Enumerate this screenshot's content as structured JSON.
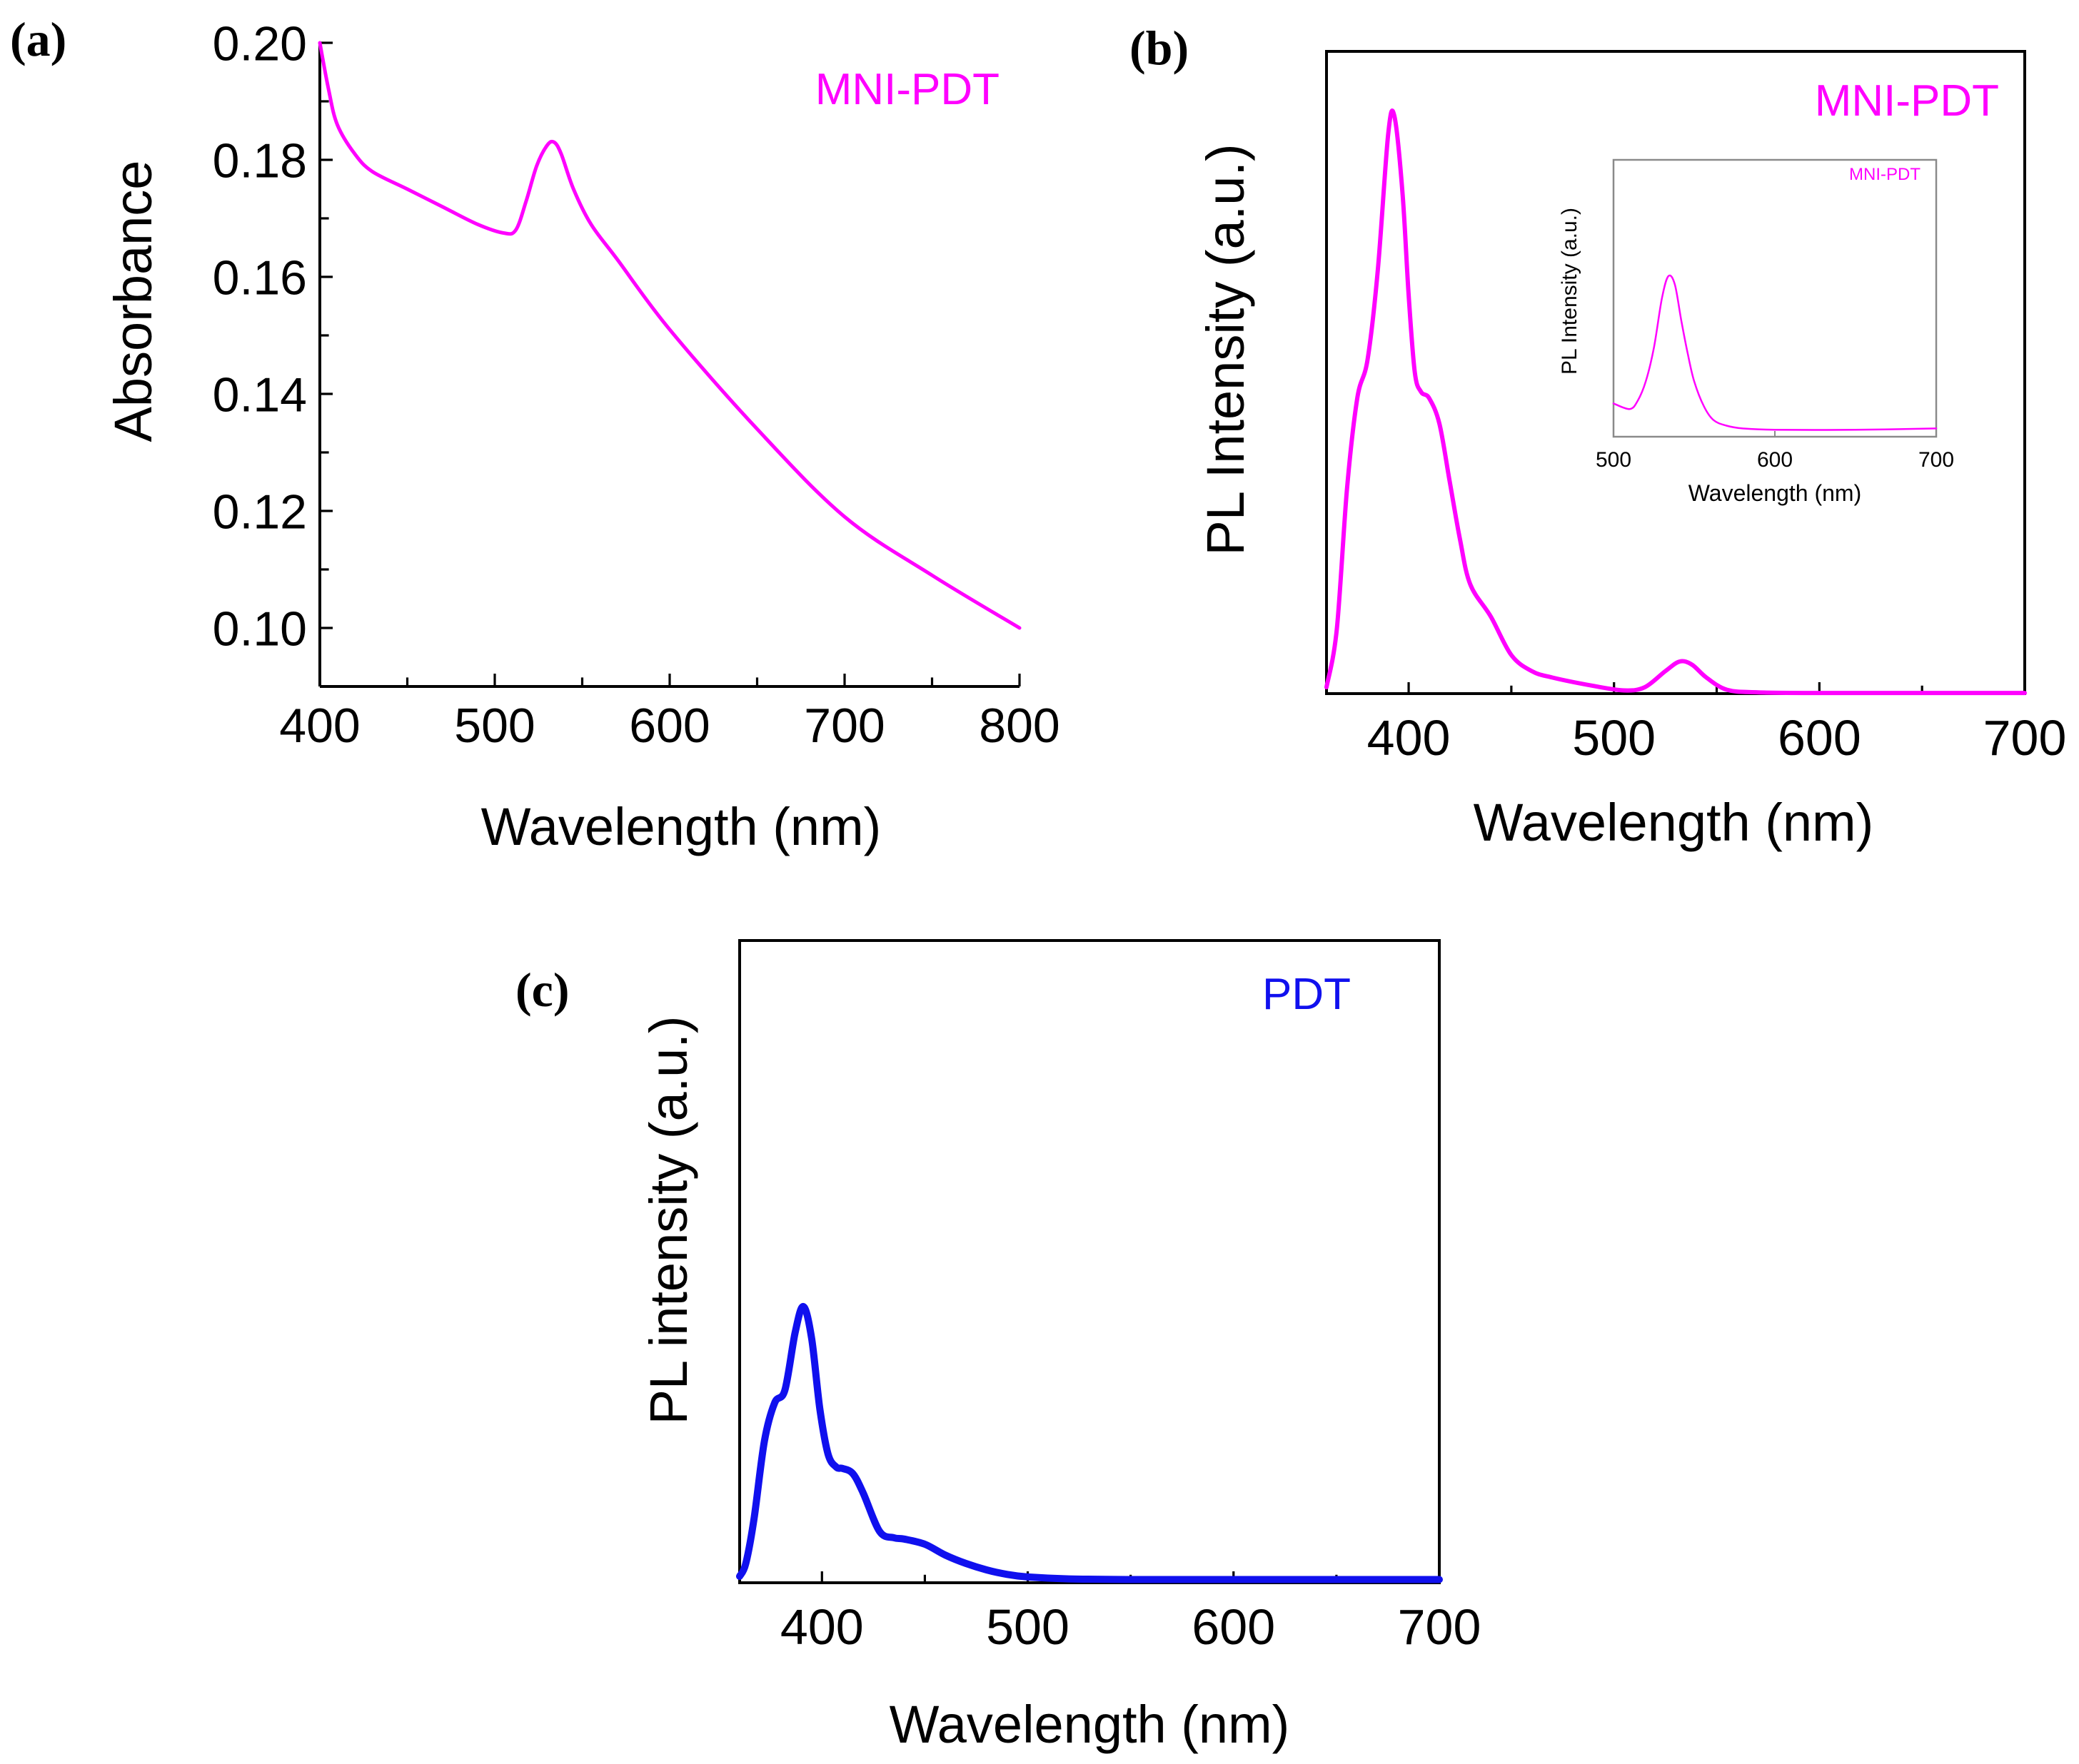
{
  "figure": {
    "background": "#ffffff",
    "axis_color": "#000000",
    "inset_frame_color": "#8a8a8a"
  },
  "chart_data": [
    {
      "id": "a",
      "panel_label": "(a)",
      "type": "line",
      "legend_label": "MNI-PDT",
      "legend_position": "top-right",
      "color": "#ff00ff",
      "xlabel": "Wavelength (nm)",
      "ylabel": "Absorbance",
      "xlim": [
        400,
        800
      ],
      "ylim": [
        0.09,
        0.2
      ],
      "xticks": [
        400,
        500,
        600,
        700,
        800
      ],
      "xtick_labels": [
        "400",
        "500",
        "600",
        "700",
        "800"
      ],
      "yticks": [
        0.1,
        0.12,
        0.14,
        0.16,
        0.18,
        0.2
      ],
      "ytick_labels": [
        "0.10",
        "0.12",
        "0.14",
        "0.16",
        "0.18",
        "0.20"
      ],
      "x": [
        400,
        405,
        410,
        420,
        430,
        450,
        470,
        490,
        505,
        512,
        518,
        524,
        530,
        534,
        538,
        545,
        555,
        570,
        600,
        650,
        700,
        750,
        800
      ],
      "y": [
        0.2,
        0.192,
        0.186,
        0.181,
        0.178,
        0.175,
        0.172,
        0.169,
        0.1675,
        0.168,
        0.173,
        0.179,
        0.1825,
        0.183,
        0.181,
        0.175,
        0.169,
        0.163,
        0.151,
        0.134,
        0.119,
        0.109,
        0.1
      ],
      "grid": false
    },
    {
      "id": "b",
      "panel_label": "(b)",
      "type": "line",
      "legend_label": "MNI-PDT",
      "legend_position": "top-right",
      "color": "#ff00ff",
      "xlabel": "Wavelength (nm)",
      "ylabel": "PL Intensity (a.u.)",
      "xlim": [
        360,
        700
      ],
      "ylim": [
        0,
        1
      ],
      "xticks": [
        400,
        500,
        600,
        700
      ],
      "xtick_labels": [
        "400",
        "500",
        "600",
        "700"
      ],
      "minor_xticks": [
        450,
        550,
        650
      ],
      "x": [
        360,
        365,
        370,
        375,
        380,
        385,
        390,
        393,
        397,
        400,
        403,
        406,
        410,
        415,
        420,
        425,
        430,
        440,
        450,
        460,
        470,
        490,
        505,
        515,
        525,
        532,
        538,
        545,
        555,
        570,
        600,
        650,
        700
      ],
      "y": [
        0.01,
        0.1,
        0.32,
        0.46,
        0.52,
        0.66,
        0.87,
        0.9,
        0.78,
        0.62,
        0.5,
        0.47,
        0.46,
        0.42,
        0.33,
        0.24,
        0.17,
        0.12,
        0.06,
        0.035,
        0.025,
        0.012,
        0.005,
        0.01,
        0.035,
        0.05,
        0.045,
        0.025,
        0.006,
        0.002,
        0.001,
        0.001,
        0.001
      ],
      "grid": false,
      "inset": {
        "type": "line",
        "legend_label": "MNI-PDT",
        "legend_position": "top-right",
        "color": "#ff00ff",
        "xlabel": "Wavelength (nm)",
        "ylabel": "PL Intensity (a.u.)",
        "xlim": [
          500,
          700
        ],
        "ylim": [
          0,
          1
        ],
        "xticks": [
          500,
          600,
          700
        ],
        "xtick_labels": [
          "500",
          "600",
          "700"
        ],
        "x": [
          500,
          510,
          515,
          520,
          525,
          530,
          534,
          538,
          542,
          546,
          550,
          556,
          562,
          570,
          580,
          600,
          650,
          700
        ],
        "y": [
          0.12,
          0.1,
          0.13,
          0.2,
          0.32,
          0.5,
          0.58,
          0.55,
          0.42,
          0.3,
          0.2,
          0.11,
          0.06,
          0.04,
          0.03,
          0.025,
          0.025,
          0.03
        ],
        "grid": false
      }
    },
    {
      "id": "c",
      "panel_label": "(c)",
      "type": "line",
      "legend_label": "PDT",
      "legend_position": "top-right",
      "color": "#1010ee",
      "xlabel": "Wavelength (nm)",
      "ylabel": "PL intensity (a.u.)",
      "xlim": [
        360,
        700
      ],
      "ylim": [
        0,
        1
      ],
      "xticks": [
        400,
        500,
        600,
        700
      ],
      "xtick_labels": [
        "400",
        "500",
        "600",
        "700"
      ],
      "minor_xticks": [
        450,
        550,
        650
      ],
      "x": [
        360,
        363,
        367,
        372,
        377,
        382,
        387,
        391,
        395,
        399,
        403,
        407,
        410,
        415,
        420,
        428,
        435,
        440,
        450,
        460,
        470,
        480,
        490,
        500,
        520,
        550,
        600,
        700
      ],
      "y": [
        0.01,
        0.03,
        0.1,
        0.22,
        0.28,
        0.3,
        0.39,
        0.43,
        0.38,
        0.27,
        0.2,
        0.18,
        0.178,
        0.17,
        0.14,
        0.08,
        0.07,
        0.068,
        0.06,
        0.043,
        0.03,
        0.02,
        0.013,
        0.009,
        0.006,
        0.005,
        0.005,
        0.005
      ],
      "grid": false
    }
  ]
}
